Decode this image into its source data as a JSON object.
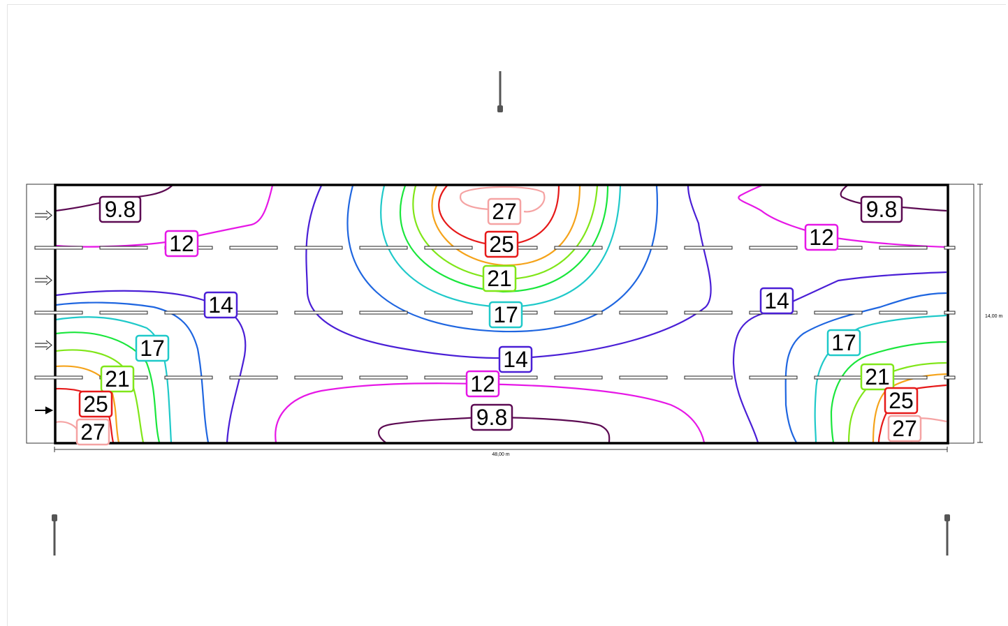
{
  "diagram": {
    "dimensions": {
      "width_label": "48,00 m",
      "height_label": "14,00 m"
    },
    "iso_colors": {
      "9.8": "#5c0a52",
      "12": "#e617e6",
      "14": "#4a1fd6",
      "17": "#1fc9c9",
      "21": "#80e619",
      "25": "#e61919",
      "27": "#f5a3a3",
      "blue": "#1f66e0",
      "green": "#1ae63c",
      "orange": "#f5a31a",
      "yellowgreen": "#b3e619"
    },
    "labels": [
      {
        "id": "tl-9_8",
        "text": "9.8",
        "level": "9.8"
      },
      {
        "id": "tl-12",
        "text": "12",
        "level": "12"
      },
      {
        "id": "l-14",
        "text": "14",
        "level": "14"
      },
      {
        "id": "l-17",
        "text": "17",
        "level": "17"
      },
      {
        "id": "l-21",
        "text": "21",
        "level": "21"
      },
      {
        "id": "l-25",
        "text": "25",
        "level": "25"
      },
      {
        "id": "l-27",
        "text": "27",
        "level": "27"
      },
      {
        "id": "c-27",
        "text": "27",
        "level": "27"
      },
      {
        "id": "c-25",
        "text": "25",
        "level": "25"
      },
      {
        "id": "c-21",
        "text": "21",
        "level": "21"
      },
      {
        "id": "c-17",
        "text": "17",
        "level": "17"
      },
      {
        "id": "c-14",
        "text": "14",
        "level": "14"
      },
      {
        "id": "c-12",
        "text": "12",
        "level": "12"
      },
      {
        "id": "c-9_8",
        "text": "9.8",
        "level": "9.8"
      },
      {
        "id": "tr-9_8",
        "text": "9.8",
        "level": "9.8"
      },
      {
        "id": "tr-12",
        "text": "12",
        "level": "12"
      },
      {
        "id": "r-14",
        "text": "14",
        "level": "14"
      },
      {
        "id": "r-17",
        "text": "17",
        "level": "17"
      },
      {
        "id": "r-21",
        "text": "21",
        "level": "21"
      },
      {
        "id": "r-25",
        "text": "25",
        "level": "25"
      },
      {
        "id": "r-27",
        "text": "27",
        "level": "27"
      }
    ]
  }
}
